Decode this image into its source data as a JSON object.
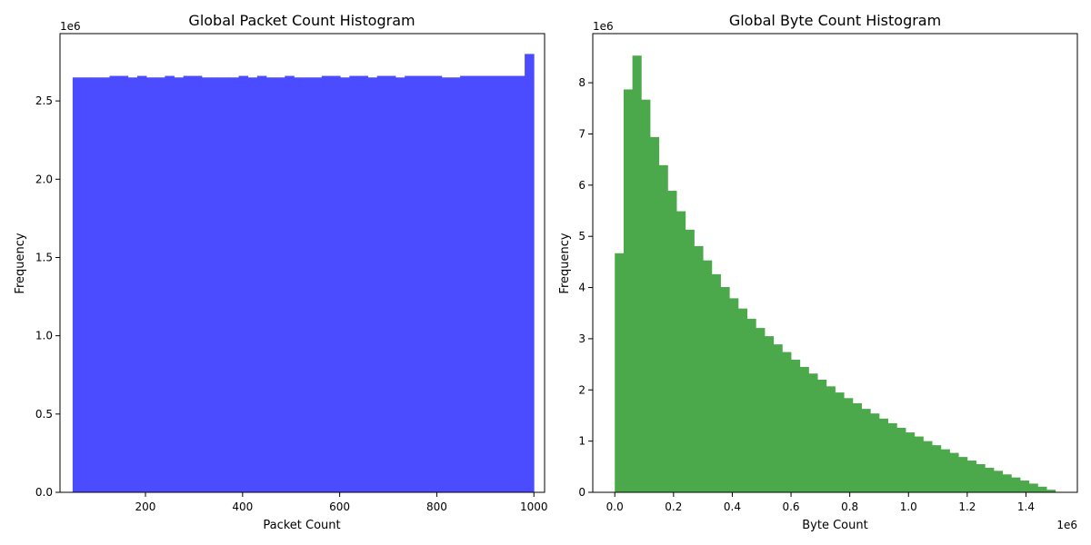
{
  "chart_data": [
    {
      "type": "bar",
      "title": "Global Packet Count Histogram",
      "xlabel": "Packet Count",
      "ylabel": "Frequency",
      "y_multiplier_label": "1e6",
      "x_multiplier_label": "",
      "color": "#4b4bff",
      "xlim": [
        24,
        1022
      ],
      "ylim": [
        0,
        2.93
      ],
      "xticks": [
        200,
        400,
        600,
        800,
        1000
      ],
      "xtick_labels": [
        "200",
        "400",
        "600",
        "800",
        "1000"
      ],
      "yticks": [
        0,
        0.5,
        1.0,
        1.5,
        2.0,
        2.5
      ],
      "ytick_labels": [
        "0.0",
        "0.5",
        "1.0",
        "1.5",
        "2.0",
        "2.5"
      ],
      "bin_start": 50,
      "bin_width": 19,
      "values": [
        2.65,
        2.65,
        2.65,
        2.65,
        2.66,
        2.66,
        2.65,
        2.66,
        2.65,
        2.65,
        2.66,
        2.65,
        2.66,
        2.66,
        2.65,
        2.65,
        2.65,
        2.65,
        2.66,
        2.65,
        2.66,
        2.65,
        2.65,
        2.66,
        2.65,
        2.65,
        2.65,
        2.66,
        2.66,
        2.65,
        2.66,
        2.66,
        2.65,
        2.66,
        2.66,
        2.65,
        2.66,
        2.66,
        2.66,
        2.66,
        2.65,
        2.65,
        2.66,
        2.66,
        2.66,
        2.66,
        2.66,
        2.66,
        2.66,
        2.8
      ],
      "grid": false
    },
    {
      "type": "bar",
      "title": "Global Byte Count Histogram",
      "xlabel": "Byte Count",
      "ylabel": "Frequency",
      "y_multiplier_label": "1e6",
      "x_multiplier_label": "1e6",
      "color": "#4ba84b",
      "xlim": [
        -0.075,
        1.575
      ],
      "ylim": [
        0,
        8.96
      ],
      "xticks": [
        0,
        0.2,
        0.4,
        0.6,
        0.8,
        1.0,
        1.2,
        1.4
      ],
      "xtick_labels": [
        "0.0",
        "0.2",
        "0.4",
        "0.6",
        "0.8",
        "1.0",
        "1.2",
        "1.4"
      ],
      "yticks": [
        0,
        1,
        2,
        3,
        4,
        5,
        6,
        7,
        8
      ],
      "ytick_labels": [
        "0",
        "1",
        "2",
        "3",
        "4",
        "5",
        "6",
        "7",
        "8"
      ],
      "bin_start": 0,
      "bin_width": 0.03,
      "values": [
        4.67,
        7.87,
        8.53,
        7.67,
        6.94,
        6.39,
        5.89,
        5.49,
        5.13,
        4.81,
        4.53,
        4.26,
        4.01,
        3.79,
        3.59,
        3.39,
        3.21,
        3.05,
        2.89,
        2.74,
        2.59,
        2.45,
        2.32,
        2.2,
        2.07,
        1.95,
        1.84,
        1.74,
        1.63,
        1.54,
        1.44,
        1.35,
        1.26,
        1.17,
        1.09,
        1.0,
        0.92,
        0.84,
        0.77,
        0.69,
        0.62,
        0.55,
        0.48,
        0.42,
        0.35,
        0.29,
        0.23,
        0.17,
        0.11,
        0.05
      ],
      "grid": false
    }
  ]
}
